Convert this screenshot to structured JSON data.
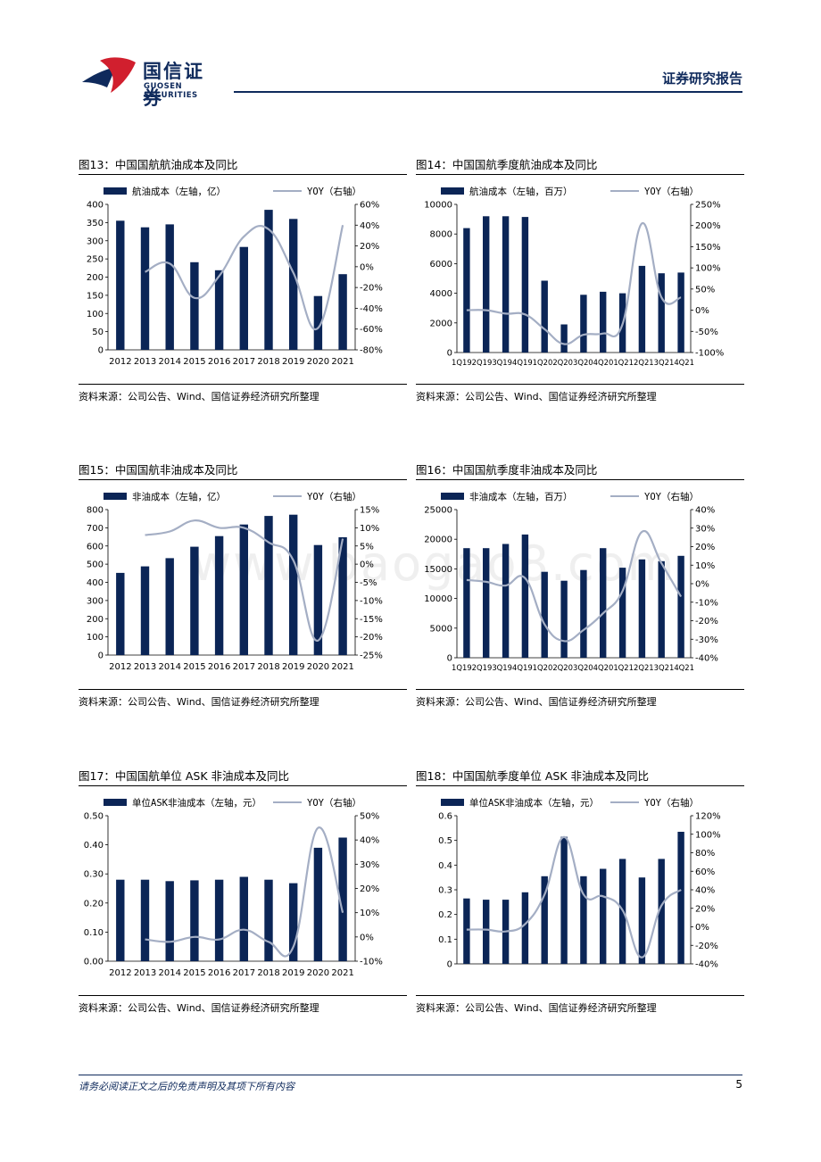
{
  "header": {
    "logo_cn": "国信证券",
    "logo_en": "GUOSEN SECURITIES",
    "report_type": "证券研究报告",
    "colors": {
      "brand_navy": "#0f2a5c",
      "brand_red": "#d11f2e"
    }
  },
  "footer": {
    "disclaimer": "请务必阅读正文之后的免责声明及其项下所有内容",
    "page_number": "5"
  },
  "watermark": "www.baogao8.com",
  "colors": {
    "bar": "#0b2556",
    "line": "#a4aec4"
  },
  "chart_data": [
    {
      "id": "fig13",
      "type": "bar",
      "title": "图13：中国国航航油成本及同比",
      "source": "资料来源：公司公告、Wind、国信证券经济研究所整理",
      "categories": [
        "2012",
        "2013",
        "2014",
        "2015",
        "2016",
        "2017",
        "2018",
        "2019",
        "2020",
        "2021"
      ],
      "series": [
        {
          "name": "航油成本（左轴，亿）",
          "type": "bar",
          "axis": "left",
          "values": [
            355,
            337,
            345,
            241,
            219,
            283,
            385,
            360,
            148,
            208
          ]
        },
        {
          "name": "YOY（右轴）",
          "type": "line",
          "axis": "right",
          "values": [
            null,
            -5,
            3,
            -30,
            -9,
            29,
            36,
            -6,
            -59,
            40
          ]
        }
      ],
      "left_axis": {
        "min": 0,
        "max": 400,
        "ticks": [
          "0",
          "50",
          "100",
          "150",
          "200",
          "250",
          "300",
          "350",
          "400"
        ]
      },
      "right_axis": {
        "min": -80,
        "max": 60,
        "ticks": [
          "-80%",
          "-60%",
          "-40%",
          "-20%",
          "0%",
          "20%",
          "40%",
          "60%"
        ]
      }
    },
    {
      "id": "fig14",
      "type": "bar",
      "title": "图14：中国国航季度航油成本及同比",
      "source": "资料来源：公司公告、Wind、国信证券经济研究所整理",
      "categories": [
        "1Q19",
        "2Q19",
        "3Q19",
        "4Q19",
        "1Q20",
        "2Q20",
        "3Q20",
        "4Q20",
        "1Q21",
        "2Q21",
        "3Q21",
        "4Q21"
      ],
      "x_label_text": "1Q192Q193Q194Q191Q202Q203Q204Q201Q212Q213Q214Q21",
      "series": [
        {
          "name": "航油成本（左轴，百万）",
          "type": "bar",
          "axis": "left",
          "values": [
            8400,
            9200,
            9200,
            9150,
            4850,
            1900,
            3900,
            4100,
            4000,
            5850,
            5350,
            5400
          ]
        },
        {
          "name": "YOY（右轴）",
          "type": "line",
          "axis": "right",
          "values": [
            0,
            0,
            -8,
            -10,
            -45,
            -80,
            -58,
            -55,
            -33,
            205,
            30,
            30
          ]
        }
      ],
      "left_axis": {
        "min": 0,
        "max": 10000,
        "ticks": [
          "0",
          "2000",
          "4000",
          "6000",
          "8000",
          "10000"
        ]
      },
      "right_axis": {
        "min": -100,
        "max": 250,
        "ticks": [
          "-100%",
          "-50%",
          "0%",
          "50%",
          "100%",
          "150%",
          "200%",
          "250%"
        ]
      }
    },
    {
      "id": "fig15",
      "type": "bar",
      "title": "图15：中国国航非油成本及同比",
      "source": "资料来源：公司公告、Wind、国信证券经济研究所整理",
      "categories": [
        "2012",
        "2013",
        "2014",
        "2015",
        "2016",
        "2017",
        "2018",
        "2019",
        "2020",
        "2021"
      ],
      "series": [
        {
          "name": "非油成本（左轴，亿）",
          "type": "bar",
          "axis": "left",
          "values": [
            452,
            488,
            533,
            596,
            654,
            718,
            765,
            772,
            605,
            648
          ]
        },
        {
          "name": "YOY（右轴）",
          "type": "line",
          "axis": "right",
          "values": [
            null,
            8,
            9,
            12,
            10,
            10,
            6,
            1,
            -21,
            7
          ]
        }
      ],
      "left_axis": {
        "min": 0,
        "max": 800,
        "ticks": [
          "0",
          "100",
          "200",
          "300",
          "400",
          "500",
          "600",
          "700",
          "800"
        ]
      },
      "right_axis": {
        "min": -25,
        "max": 15,
        "ticks": [
          "-25%",
          "-20%",
          "-15%",
          "-10%",
          "-5%",
          "0%",
          "5%",
          "10%",
          "15%"
        ]
      }
    },
    {
      "id": "fig16",
      "type": "bar",
      "title": "图16：中国国航季度非油成本及同比",
      "source": "资料来源：公司公告、Wind、国信证券经济研究所整理",
      "categories": [
        "1Q19",
        "2Q19",
        "3Q19",
        "4Q19",
        "1Q20",
        "2Q20",
        "3Q20",
        "4Q20",
        "1Q21",
        "2Q21",
        "3Q21",
        "4Q21"
      ],
      "x_label_text": "1Q192Q193Q194Q191Q202Q203Q204Q201Q212Q213Q214Q21",
      "series": [
        {
          "name": "非油成本（左轴，百万）",
          "type": "bar",
          "axis": "left",
          "values": [
            18500,
            18500,
            19200,
            20800,
            14500,
            13000,
            14800,
            18500,
            15200,
            16600,
            16300,
            17200
          ]
        },
        {
          "name": "YOY（右轴）",
          "type": "line",
          "axis": "right",
          "values": [
            2,
            1,
            -1,
            3,
            -22,
            -31,
            -25,
            -16,
            -4,
            28,
            11,
            -7
          ]
        }
      ],
      "left_axis": {
        "min": 0,
        "max": 25000,
        "ticks": [
          "0",
          "5000",
          "10000",
          "15000",
          "20000",
          "25000"
        ]
      },
      "right_axis": {
        "min": -40,
        "max": 40,
        "ticks": [
          "-40%",
          "-30%",
          "-20%",
          "-10%",
          "0%",
          "10%",
          "20%",
          "30%",
          "40%"
        ]
      }
    },
    {
      "id": "fig17",
      "type": "bar",
      "title": "图17：中国国航单位 ASK 非油成本及同比",
      "source": "资料来源：公司公告、Wind、国信证券经济研究所整理",
      "categories": [
        "2012",
        "2013",
        "2014",
        "2015",
        "2016",
        "2017",
        "2018",
        "2019",
        "2020",
        "2021"
      ],
      "series": [
        {
          "name": "单位ASK非油成本（左轴，元）",
          "type": "bar",
          "axis": "left",
          "values": [
            0.28,
            0.28,
            0.275,
            0.278,
            0.28,
            0.29,
            0.28,
            0.268,
            0.39,
            0.425
          ]
        },
        {
          "name": "YOY（右轴）",
          "type": "line",
          "axis": "right",
          "values": [
            null,
            -1,
            -2,
            0,
            -1,
            3,
            -2,
            -4,
            45,
            10
          ]
        }
      ],
      "left_axis": {
        "min": 0,
        "max": 0.5,
        "ticks": [
          "0.00",
          "0.10",
          "0.20",
          "0.30",
          "0.40",
          "0.50"
        ]
      },
      "right_axis": {
        "min": -10,
        "max": 50,
        "ticks": [
          "-10%",
          "0%",
          "10%",
          "20%",
          "30%",
          "40%",
          "50%"
        ]
      }
    },
    {
      "id": "fig18",
      "type": "bar",
      "title": "图18：中国国航季度单位 ASK 非油成本及同比",
      "source": "资料来源：公司公告、Wind、国信证券经济研究所整理",
      "categories": [
        "1Q19",
        "2Q19",
        "3Q19",
        "4Q19",
        "1Q20",
        "2Q20",
        "3Q20",
        "4Q20",
        "1Q21",
        "2Q21",
        "3Q21",
        "4Q21"
      ],
      "series": [
        {
          "name": "单位ASK非油成本（左轴，元）",
          "type": "bar",
          "axis": "left",
          "values": [
            0.265,
            0.26,
            0.26,
            0.29,
            0.355,
            0.515,
            0.355,
            0.385,
            0.425,
            0.35,
            0.425,
            0.535
          ]
        },
        {
          "name": "YOY（右轴）",
          "type": "line",
          "axis": "right",
          "values": [
            -3,
            -3,
            -5,
            3,
            35,
            97,
            35,
            33,
            18,
            -33,
            23,
            40
          ]
        }
      ],
      "left_axis": {
        "min": 0,
        "max": 0.6,
        "ticks": [
          "0",
          "0.1",
          "0.2",
          "0.3",
          "0.4",
          "0.5",
          "0.6"
        ]
      },
      "right_axis": {
        "min": -40,
        "max": 120,
        "ticks": [
          "-40%",
          "-20%",
          "0%",
          "20%",
          "40%",
          "60%",
          "80%",
          "100%",
          "120%"
        ]
      }
    }
  ]
}
